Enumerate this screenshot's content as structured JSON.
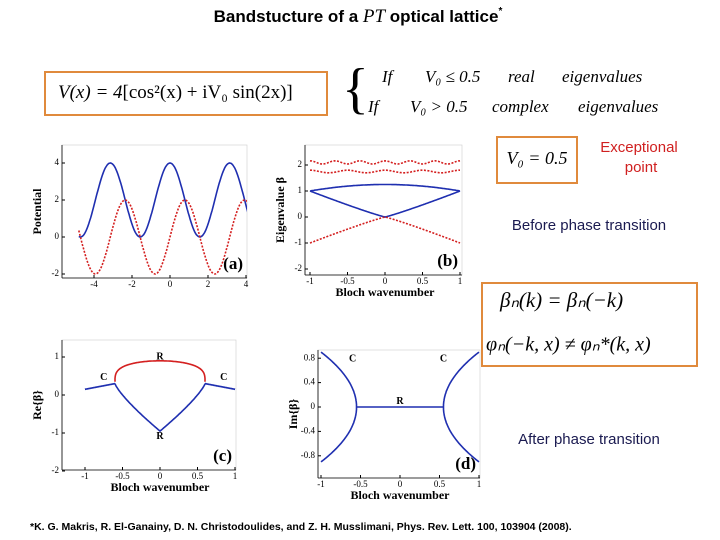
{
  "title": {
    "text": "Bandstucture of a ",
    "script": "PT",
    "rest": " optical lattice",
    "star": "*"
  },
  "equation": {
    "lhs": "V(x) = 4",
    "body": "[cos²(x) + iV₀ sin(2x)]"
  },
  "conditions": [
    {
      "if": "If",
      "cond": "V₀ ≤ 0.5",
      "kind": "real",
      "word": "eigenvalues"
    },
    {
      "if": "If",
      "cond": "V₀ > 0.5",
      "kind": "complex",
      "word": "eigenvalues"
    }
  ],
  "exceptional": {
    "box": "V₀ = 0.5",
    "note": [
      "Exceptional",
      "point"
    ]
  },
  "before": "Before phase transition",
  "after": "After phase transition",
  "symmetry": [
    "βₙ(k) = βₙ(−k)",
    "φₙ(−k, x) ≠ φₙ*(k, x)"
  ],
  "panels": [
    {
      "label": "(a)",
      "ylabel": "Potential",
      "xticks": [
        -4,
        -2,
        0,
        2,
        4
      ],
      "yticks": [
        4,
        2,
        0,
        -2
      ]
    },
    {
      "label": "(b)",
      "ylabel": "Eigenvalue β",
      "xlabel": "Bloch wavenumber",
      "xticks": [
        -1,
        -0.5,
        0,
        0.5,
        1
      ],
      "yticks": [
        2,
        1,
        0,
        -1,
        -2
      ]
    },
    {
      "label": "(c)",
      "ylabel": "Re{β}",
      "xlabel": "Bloch wavenumber",
      "xticks": [
        -1,
        -0.5,
        0,
        0.5,
        1
      ],
      "yticks": [
        1,
        0,
        -1,
        -2
      ],
      "points": [
        "R",
        "C",
        "C",
        "R"
      ]
    },
    {
      "label": "(d)",
      "ylabel": "Im{β}",
      "xlabel": "Bloch wavenumber",
      "xticks": [
        -1,
        -0.5,
        0,
        0.5,
        1
      ],
      "yticks": [
        0.8,
        0.4,
        0,
        -0.4,
        -0.8
      ],
      "points": [
        "C",
        "C",
        "R"
      ]
    }
  ],
  "reference": "*K. G. Makris, R. El-Ganainy, D. N. Christodoulides, and Z. H. Musslimani, Phys. Rev. Lett. 100, 103904 (2008)."
}
